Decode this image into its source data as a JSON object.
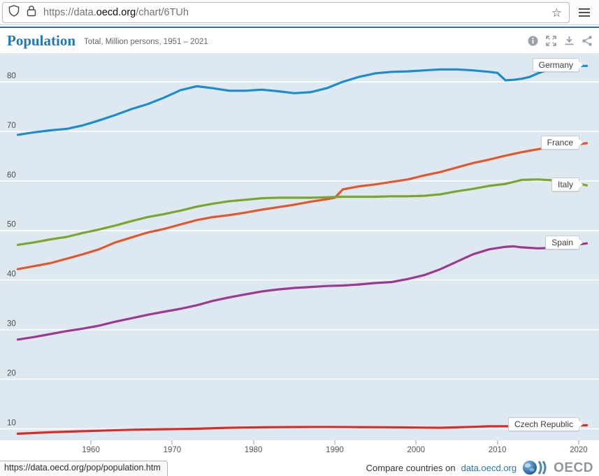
{
  "browser": {
    "url_prefix": "https://data.",
    "url_domain": "oecd.org",
    "url_path": "/chart/6TUh",
    "star_glyph": "☆"
  },
  "header": {
    "title": "Population",
    "subtitle": "Total, Million persons, 1951 – 2021"
  },
  "chart_data": {
    "type": "line",
    "title": "Population",
    "unit": "Million persons",
    "x_range": [
      1951,
      2021
    ],
    "ylim": [
      7.5,
      84.5
    ],
    "grid_on": true,
    "grid_values": [
      10,
      20,
      30,
      40,
      50,
      60,
      70,
      80
    ],
    "x_ticks": [
      1960,
      1970,
      1980,
      1990,
      2000,
      2010,
      2020
    ],
    "legend_position": "right-labels",
    "series": [
      {
        "name": "Germany",
        "color": "#1e8ccb",
        "points": [
          [
            1951,
            69.3
          ],
          [
            1953,
            69.8
          ],
          [
            1955,
            70.2
          ],
          [
            1957,
            70.5
          ],
          [
            1959,
            71.2
          ],
          [
            1961,
            72.2
          ],
          [
            1963,
            73.3
          ],
          [
            1965,
            74.5
          ],
          [
            1967,
            75.5
          ],
          [
            1969,
            76.8
          ],
          [
            1971,
            78.3
          ],
          [
            1973,
            79.1
          ],
          [
            1975,
            78.7
          ],
          [
            1977,
            78.2
          ],
          [
            1979,
            78.2
          ],
          [
            1981,
            78.4
          ],
          [
            1983,
            78.1
          ],
          [
            1985,
            77.7
          ],
          [
            1987,
            77.9
          ],
          [
            1989,
            78.7
          ],
          [
            1991,
            80.0
          ],
          [
            1993,
            81.0
          ],
          [
            1995,
            81.7
          ],
          [
            1997,
            82.0
          ],
          [
            1999,
            82.1
          ],
          [
            2001,
            82.3
          ],
          [
            2003,
            82.5
          ],
          [
            2005,
            82.5
          ],
          [
            2007,
            82.3
          ],
          [
            2009,
            82.0
          ],
          [
            2010,
            81.8
          ],
          [
            2011,
            80.3
          ],
          [
            2012,
            80.4
          ],
          [
            2013,
            80.6
          ],
          [
            2014,
            81.0
          ],
          [
            2015,
            81.7
          ],
          [
            2016,
            82.3
          ],
          [
            2017,
            82.7
          ],
          [
            2018,
            82.9
          ],
          [
            2019,
            83.1
          ],
          [
            2020,
            83.2
          ],
          [
            2021,
            83.2
          ]
        ]
      },
      {
        "name": "France",
        "color": "#e2572d",
        "points": [
          [
            1951,
            42.2
          ],
          [
            1953,
            42.8
          ],
          [
            1955,
            43.4
          ],
          [
            1957,
            44.3
          ],
          [
            1959,
            45.2
          ],
          [
            1961,
            46.2
          ],
          [
            1963,
            47.6
          ],
          [
            1965,
            48.6
          ],
          [
            1967,
            49.6
          ],
          [
            1969,
            50.3
          ],
          [
            1971,
            51.2
          ],
          [
            1973,
            52.1
          ],
          [
            1975,
            52.7
          ],
          [
            1977,
            53.1
          ],
          [
            1979,
            53.6
          ],
          [
            1981,
            54.2
          ],
          [
            1983,
            54.7
          ],
          [
            1985,
            55.2
          ],
          [
            1987,
            55.8
          ],
          [
            1989,
            56.3
          ],
          [
            1990,
            56.6
          ],
          [
            1991,
            58.3
          ],
          [
            1993,
            58.9
          ],
          [
            1995,
            59.3
          ],
          [
            1997,
            59.8
          ],
          [
            1999,
            60.3
          ],
          [
            2001,
            61.1
          ],
          [
            2003,
            61.8
          ],
          [
            2005,
            62.7
          ],
          [
            2007,
            63.6
          ],
          [
            2009,
            64.3
          ],
          [
            2011,
            65.1
          ],
          [
            2013,
            65.8
          ],
          [
            2015,
            66.4
          ],
          [
            2017,
            66.9
          ],
          [
            2019,
            67.2
          ],
          [
            2021,
            67.6
          ]
        ]
      },
      {
        "name": "Italy",
        "color": "#7aa62d",
        "points": [
          [
            1951,
            47.1
          ],
          [
            1953,
            47.6
          ],
          [
            1955,
            48.2
          ],
          [
            1957,
            48.7
          ],
          [
            1959,
            49.5
          ],
          [
            1961,
            50.2
          ],
          [
            1963,
            51.0
          ],
          [
            1965,
            51.9
          ],
          [
            1967,
            52.7
          ],
          [
            1969,
            53.3
          ],
          [
            1971,
            54.0
          ],
          [
            1973,
            54.8
          ],
          [
            1975,
            55.4
          ],
          [
            1977,
            55.9
          ],
          [
            1979,
            56.2
          ],
          [
            1981,
            56.5
          ],
          [
            1983,
            56.6
          ],
          [
            1985,
            56.6
          ],
          [
            1987,
            56.6
          ],
          [
            1989,
            56.7
          ],
          [
            1991,
            56.8
          ],
          [
            1993,
            56.8
          ],
          [
            1995,
            56.8
          ],
          [
            1997,
            56.9
          ],
          [
            1999,
            56.9
          ],
          [
            2001,
            57.0
          ],
          [
            2003,
            57.3
          ],
          [
            2005,
            57.9
          ],
          [
            2007,
            58.4
          ],
          [
            2009,
            59.0
          ],
          [
            2011,
            59.4
          ],
          [
            2013,
            60.2
          ],
          [
            2015,
            60.3
          ],
          [
            2017,
            60.1
          ],
          [
            2019,
            59.8
          ],
          [
            2021,
            59.1
          ]
        ]
      },
      {
        "name": "Spain",
        "color": "#9c3a92",
        "points": [
          [
            1951,
            28.0
          ],
          [
            1953,
            28.5
          ],
          [
            1955,
            29.1
          ],
          [
            1957,
            29.7
          ],
          [
            1959,
            30.2
          ],
          [
            1961,
            30.8
          ],
          [
            1963,
            31.6
          ],
          [
            1965,
            32.3
          ],
          [
            1967,
            33.0
          ],
          [
            1969,
            33.6
          ],
          [
            1971,
            34.2
          ],
          [
            1973,
            34.9
          ],
          [
            1975,
            35.8
          ],
          [
            1977,
            36.5
          ],
          [
            1979,
            37.1
          ],
          [
            1981,
            37.7
          ],
          [
            1983,
            38.1
          ],
          [
            1985,
            38.4
          ],
          [
            1987,
            38.6
          ],
          [
            1989,
            38.8
          ],
          [
            1991,
            38.9
          ],
          [
            1993,
            39.1
          ],
          [
            1995,
            39.4
          ],
          [
            1997,
            39.6
          ],
          [
            1999,
            40.2
          ],
          [
            2001,
            41.0
          ],
          [
            2003,
            42.2
          ],
          [
            2005,
            43.7
          ],
          [
            2007,
            45.2
          ],
          [
            2009,
            46.2
          ],
          [
            2011,
            46.7
          ],
          [
            2012,
            46.8
          ],
          [
            2013,
            46.6
          ],
          [
            2015,
            46.4
          ],
          [
            2017,
            46.5
          ],
          [
            2019,
            47.0
          ],
          [
            2021,
            47.4
          ]
        ]
      },
      {
        "name": "Czech Republic",
        "color": "#da2c27",
        "points": [
          [
            1951,
            9.0
          ],
          [
            1955,
            9.3
          ],
          [
            1959,
            9.5
          ],
          [
            1961,
            9.6
          ],
          [
            1965,
            9.8
          ],
          [
            1969,
            9.9
          ],
          [
            1973,
            10.0
          ],
          [
            1977,
            10.2
          ],
          [
            1981,
            10.3
          ],
          [
            1985,
            10.34
          ],
          [
            1989,
            10.36
          ],
          [
            1993,
            10.33
          ],
          [
            1997,
            10.3
          ],
          [
            2001,
            10.22
          ],
          [
            2003,
            10.2
          ],
          [
            2007,
            10.38
          ],
          [
            2009,
            10.49
          ],
          [
            2013,
            10.51
          ],
          [
            2017,
            10.59
          ],
          [
            2021,
            10.7
          ]
        ]
      }
    ]
  },
  "footer": {
    "status_url": "https://data.oecd.org/pop/population.htm",
    "compare_text": "Compare countries on",
    "compare_link": "data.oecd.org",
    "logo_text": "OECD"
  },
  "colors": {
    "page_accent": "#2a6fa8",
    "chart_background": "#dde8f1",
    "gridline": "#ffffff",
    "axis_text": "#555555",
    "title_blue": "#2079b6",
    "icon_gray": "#9aa1a9"
  }
}
